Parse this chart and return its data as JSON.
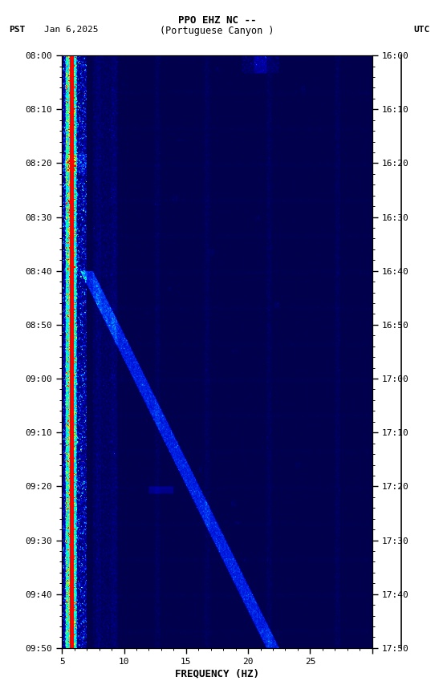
{
  "title_line1": "PPO EHZ NC --",
  "title_line2": "(Portuguese Canyon )",
  "left_label": "PST",
  "date_label": "Jan 6,2025",
  "right_label": "UTC",
  "pst_ticks": [
    "08:00",
    "08:10",
    "08:20",
    "08:30",
    "08:40",
    "08:50",
    "09:00",
    "09:10",
    "09:20",
    "09:30",
    "09:40",
    "09:50"
  ],
  "utc_ticks": [
    "16:00",
    "16:10",
    "16:20",
    "16:30",
    "16:40",
    "16:50",
    "17:00",
    "17:10",
    "17:20",
    "17:30",
    "17:40",
    "17:50"
  ],
  "freq_min": 0,
  "freq_max": 25,
  "xlabel": "FREQUENCY (HZ)",
  "fig_width": 5.52,
  "fig_height": 8.64,
  "dpi": 100,
  "colormap_nodes": [
    [
      0.0,
      "#00004B"
    ],
    [
      0.15,
      "#000080"
    ],
    [
      0.3,
      "#0000CD"
    ],
    [
      0.45,
      "#0050FF"
    ],
    [
      0.58,
      "#00BFFF"
    ],
    [
      0.7,
      "#00FFFF"
    ],
    [
      0.8,
      "#00FF80"
    ],
    [
      0.88,
      "#ADFF2F"
    ],
    [
      0.94,
      "#FFFF00"
    ],
    [
      0.97,
      "#FF8C00"
    ],
    [
      1.0,
      "#FF0000"
    ]
  ]
}
